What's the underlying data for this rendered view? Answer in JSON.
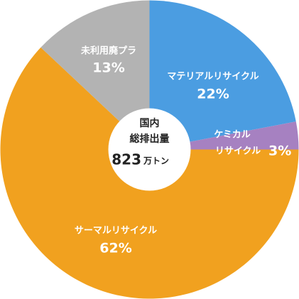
{
  "chart_data": {
    "type": "donut",
    "categories": [
      [
        "マテリアルリサイクル"
      ],
      [
        "ケミカル",
        "リサイクル"
      ],
      [
        "サーマルリサイクル"
      ],
      [
        "未利用廃プラ"
      ]
    ],
    "values": [
      22,
      3,
      62,
      13
    ],
    "value_labels": [
      "22%",
      "3%",
      "62%",
      "13%"
    ],
    "colors": [
      "#4b9de1",
      "#a681c1",
      "#f1a11f",
      "#b3b3b3"
    ],
    "center_label": [
      "国内",
      "総排出量"
    ],
    "total": 823,
    "total_unit": "万トン"
  }
}
